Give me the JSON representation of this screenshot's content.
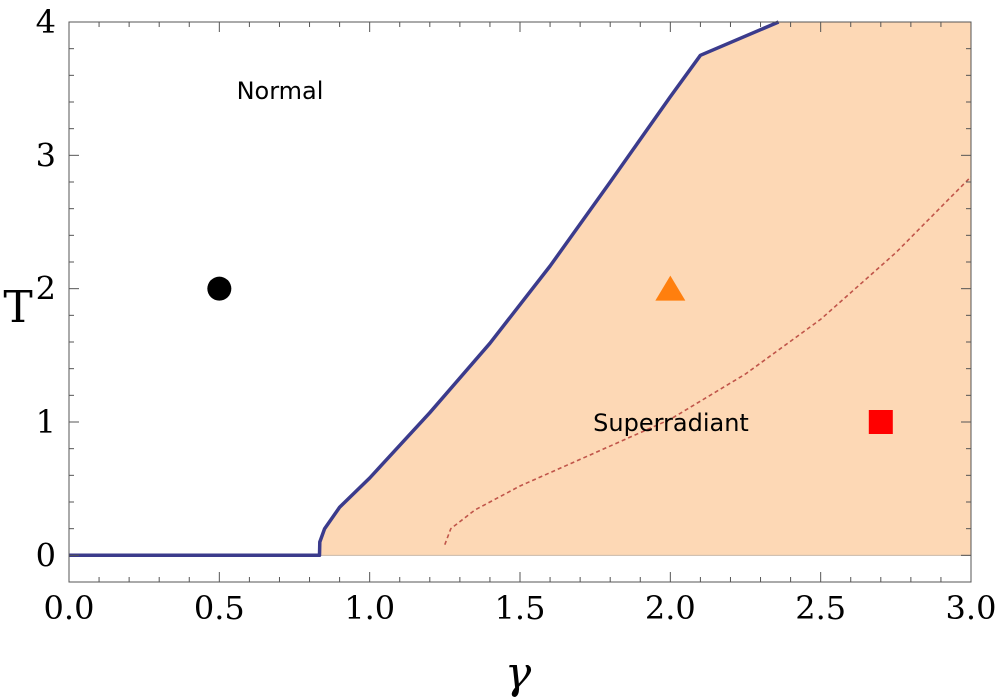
{
  "chart_data": {
    "type": "area",
    "xlabel": "γ",
    "ylabel": "T",
    "xlim": [
      0,
      3
    ],
    "ylim": [
      -0.2,
      4
    ],
    "x_ticks": [
      "0.0",
      "0.5",
      "1.0",
      "1.5",
      "2.0",
      "2.5",
      "3.0"
    ],
    "y_ticks": [
      "0",
      "1",
      "2",
      "3",
      "4"
    ],
    "annotations": [
      {
        "text": "Normal",
        "x": 0.71,
        "y": 3.5
      },
      {
        "text": "Superradiant",
        "x": 2.17,
        "y": 1.0
      }
    ],
    "colors": {
      "critical_line": "#3b3b8c",
      "superradiant_fill": "#fdd8b5",
      "dashed_line": "#c0554a",
      "circle": "#000000",
      "triangle": "#ff7f0e",
      "square": "#ff0000"
    },
    "series": [
      {
        "kind": "solid-line",
        "points": [
          [
            0,
            0
          ],
          [
            0.833,
            0
          ],
          [
            0.834,
            0.1
          ],
          [
            0.85,
            0.2
          ],
          [
            0.9,
            0.36
          ],
          [
            1.0,
            0.58
          ],
          [
            1.2,
            1.07
          ],
          [
            1.4,
            1.59
          ],
          [
            1.6,
            2.17
          ],
          [
            1.8,
            2.8
          ],
          [
            2.0,
            3.44
          ],
          [
            2.1,
            3.75
          ],
          [
            2.36,
            4.0
          ]
        ]
      },
      {
        "kind": "dashed-line",
        "points": [
          [
            1.25,
            0.08
          ],
          [
            1.27,
            0.2
          ],
          [
            1.35,
            0.34
          ],
          [
            1.5,
            0.52
          ],
          [
            1.75,
            0.77
          ],
          [
            2.0,
            1.02
          ],
          [
            2.25,
            1.36
          ],
          [
            2.5,
            1.77
          ],
          [
            2.75,
            2.27
          ],
          [
            3.0,
            2.84
          ]
        ]
      }
    ],
    "markers": [
      {
        "shape": "circle",
        "x": 0.5,
        "y": 2.0
      },
      {
        "shape": "triangle",
        "x": 2.0,
        "y": 2.0
      },
      {
        "shape": "square",
        "x": 2.7,
        "y": 1.0
      }
    ]
  }
}
